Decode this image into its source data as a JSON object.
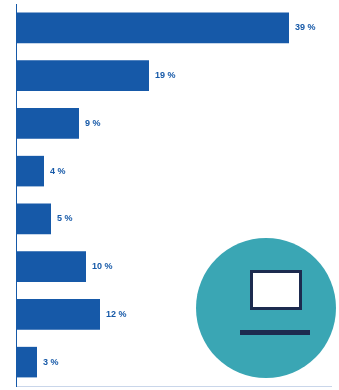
{
  "chart_data": {
    "type": "bar",
    "orientation": "horizontal",
    "categories": [
      null,
      null,
      null,
      null,
      null,
      null,
      null,
      null
    ],
    "values": [
      39,
      19,
      9,
      4,
      5,
      10,
      12,
      3
    ],
    "value_labels": [
      "39 %",
      "19 %",
      "9 %",
      "4 %",
      "5 %",
      "10 %",
      "12 %",
      "3 %"
    ],
    "color": "#1659a8",
    "xlim": [
      0,
      45
    ],
    "data_labels": true,
    "tick_labels": false,
    "grid": false
  }
}
